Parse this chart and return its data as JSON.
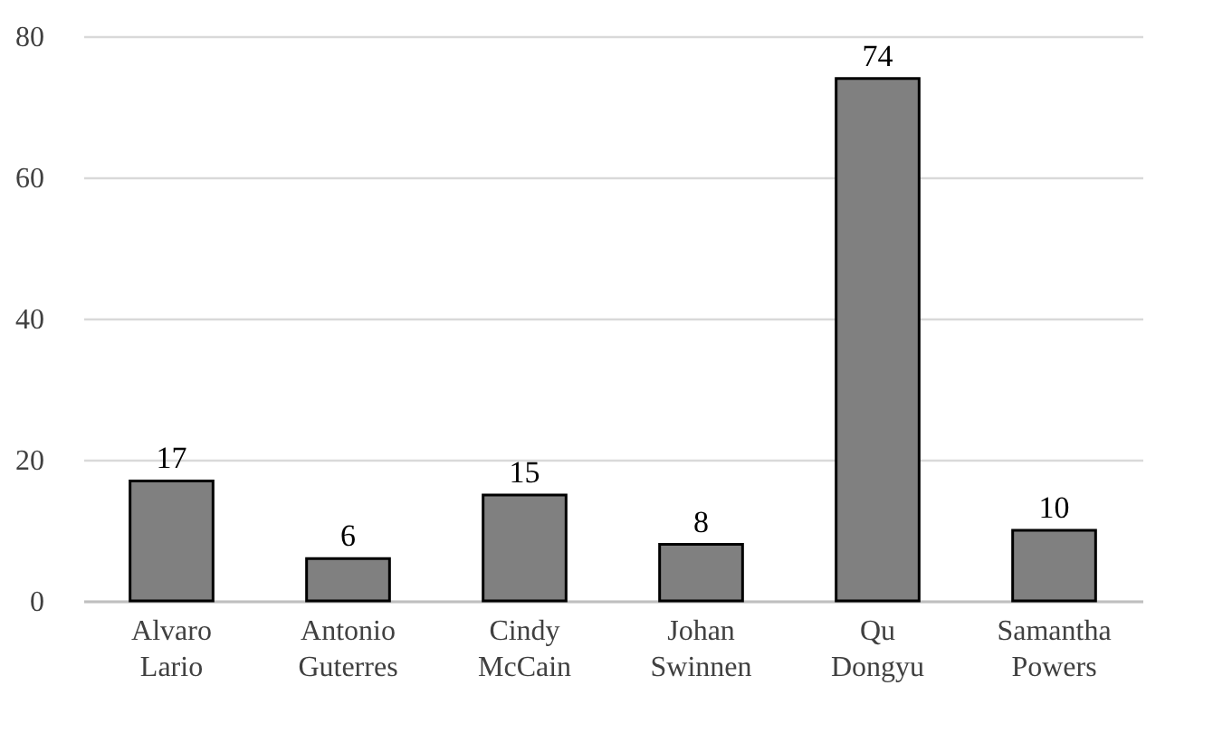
{
  "chart_data": {
    "type": "bar",
    "categories": [
      "Alvaro Lario",
      "Antonio Guterres",
      "Cindy McCain",
      "Johan Swinnen",
      "Qu Dongyu",
      "Samantha Powers"
    ],
    "values": [
      17,
      6,
      15,
      8,
      74,
      10
    ],
    "color": "#808080",
    "ylim": [
      0,
      80
    ],
    "yticks": [
      0,
      20,
      40,
      60,
      80
    ],
    "grid": "y",
    "data_labels": true
  }
}
